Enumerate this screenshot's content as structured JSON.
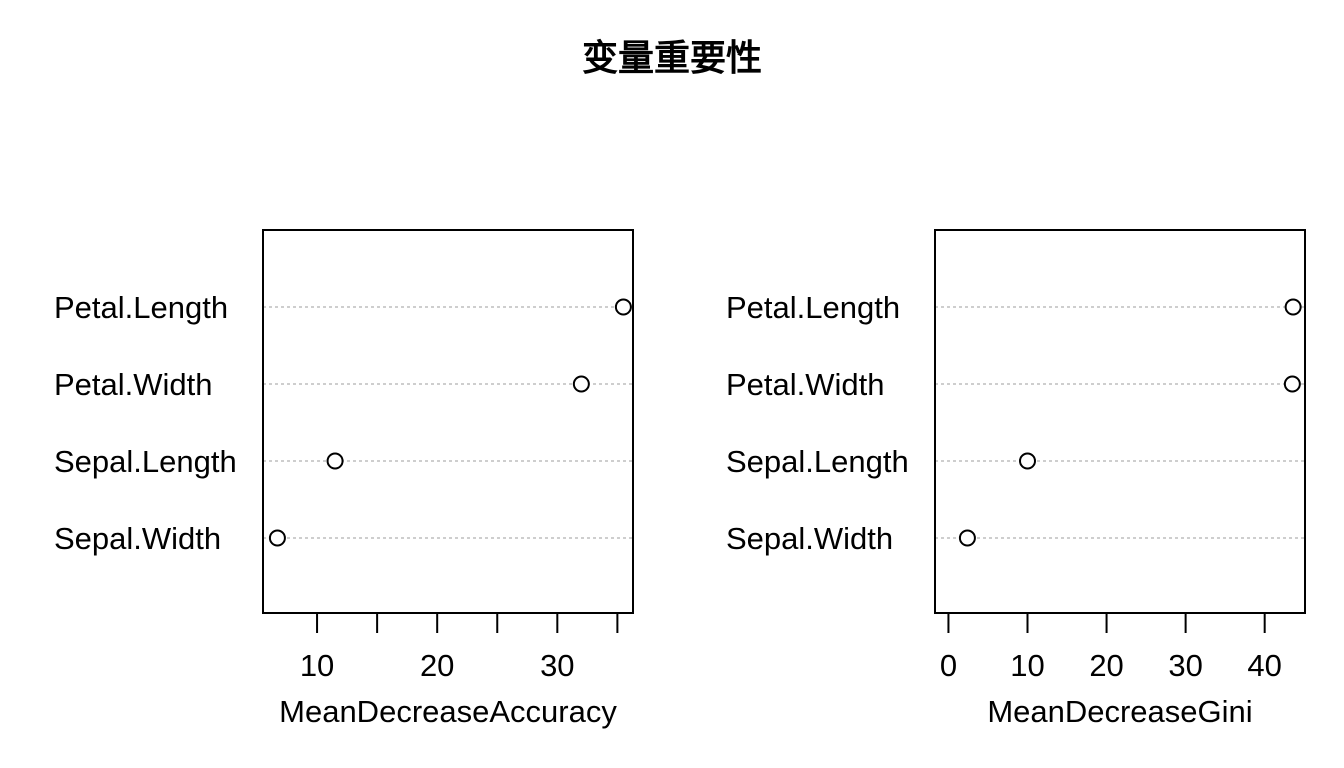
{
  "title": "变量重要性",
  "chart_data": [
    {
      "type": "scatter",
      "xlabel": "MeanDecreaseAccuracy",
      "categories": [
        "Petal.Length",
        "Petal.Width",
        "Sepal.Length",
        "Sepal.Width"
      ],
      "values": [
        35.5,
        32.0,
        11.5,
        6.7
      ],
      "xlim": [
        5.5,
        36.3
      ],
      "xticks": [
        10,
        15,
        20,
        25,
        30,
        35
      ],
      "xtick_labels": [
        10,
        20,
        30
      ]
    },
    {
      "type": "scatter",
      "xlabel": "MeanDecreaseGini",
      "categories": [
        "Petal.Length",
        "Petal.Width",
        "Sepal.Length",
        "Sepal.Width"
      ],
      "values": [
        43.6,
        43.5,
        10.0,
        2.4
      ],
      "xlim": [
        -1.7,
        45.1
      ],
      "xticks": [
        0,
        10,
        20,
        30,
        40
      ],
      "xtick_labels": [
        0,
        10,
        20,
        30,
        40
      ]
    }
  ]
}
